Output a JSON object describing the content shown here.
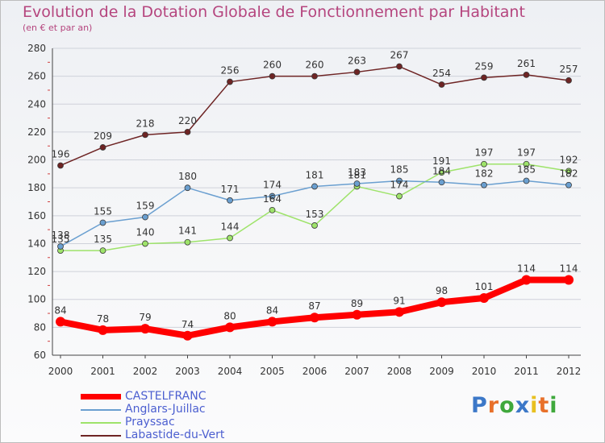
{
  "chart_data": {
    "type": "line",
    "title": "Evolution de la Dotation Globale de Fonctionnement par Habitant",
    "subtitle": "(en € et par an)",
    "xlabel": "",
    "ylabel": "",
    "ylim": [
      60,
      280
    ],
    "y_ticks": [
      60,
      80,
      100,
      120,
      140,
      160,
      180,
      200,
      220,
      240,
      260,
      280
    ],
    "categories": [
      "2000",
      "2001",
      "2002",
      "2003",
      "2004",
      "2005",
      "2006",
      "2007",
      "2008",
      "2009",
      "2010",
      "2011",
      "2012"
    ],
    "grid": true,
    "series": [
      {
        "name": "CASTELFRANC",
        "color": "#ff0000",
        "values": [
          84,
          78,
          79,
          74,
          80,
          84,
          87,
          89,
          91,
          98,
          101,
          114,
          114
        ]
      },
      {
        "name": "Anglars-Juillac",
        "color": "#6a9fd0",
        "values": [
          138,
          155,
          159,
          180,
          171,
          174,
          181,
          183,
          185,
          184,
          182,
          185,
          182
        ]
      },
      {
        "name": "Prayssac",
        "color": "#9ee36a",
        "values": [
          135,
          135,
          140,
          141,
          144,
          164,
          153,
          181,
          174,
          191,
          197,
          197,
          192
        ]
      },
      {
        "name": "Labastide-du-Vert",
        "color": "#6e2424",
        "values": [
          196,
          209,
          218,
          220,
          256,
          260,
          260,
          263,
          267,
          254,
          259,
          261,
          257
        ]
      }
    ]
  },
  "legend": {
    "items": [
      {
        "label": "CASTELFRANC",
        "color": "#ff0000"
      },
      {
        "label": "Anglars-Juillac",
        "color": "#6a9fd0"
      },
      {
        "label": "Prayssac",
        "color": "#9ee36a"
      },
      {
        "label": "Labastide-du-Vert",
        "color": "#6e2424"
      }
    ]
  },
  "branding": {
    "logo_text": "Proxiti",
    "letter_colors": [
      "#3c78c8",
      "#e8702a",
      "#3fa83c",
      "#3c78c8",
      "#e8c020",
      "#e8702a",
      "#3fa83c"
    ]
  }
}
